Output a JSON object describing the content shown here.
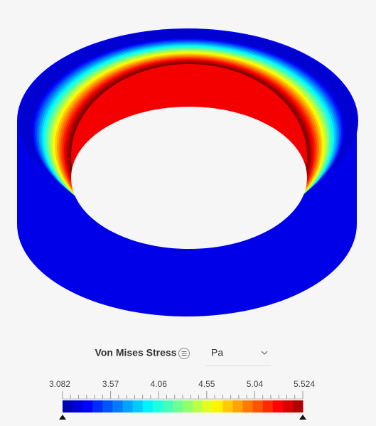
{
  "legend": {
    "title": "Von Mises Stress",
    "unit": "Pa",
    "tick_labels": [
      "3.082",
      "3.57",
      "4.06",
      "4.55",
      "5.04",
      "5.524"
    ]
  }
}
